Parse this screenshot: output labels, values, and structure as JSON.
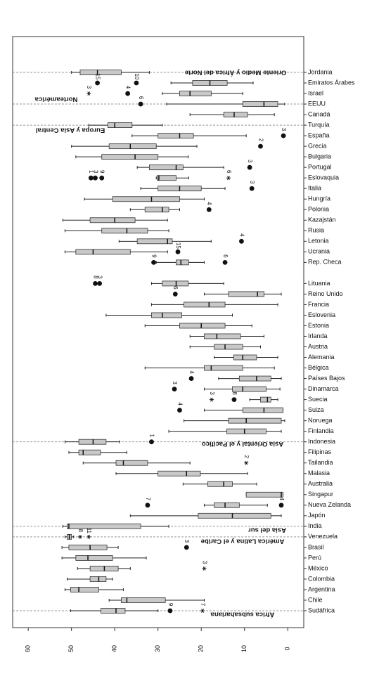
{
  "chart_data": {
    "type": "boxplot",
    "categories": [
      "Jordania",
      "Emiratos Árabes",
      "Israel",
      "EEUU",
      "Canadá",
      "Turquía",
      "España",
      "Grecia",
      "Bulgaria",
      "Portugal",
      "Eslovaquia",
      "Italia",
      "Hungría",
      "Polonia",
      "Kazajstán",
      "Rusia",
      "Letonia",
      "Ucrania",
      "Rep. Checa",
      null,
      "Lituania",
      "Reino Unido",
      "Francia",
      "Eslovenia",
      "Estonia",
      "Irlanda",
      "Austria",
      "Alemania",
      "Bélgica",
      "Países Bajos",
      "Dinamarca",
      "Suecia",
      "Suiza",
      "Noruega",
      "Finlandia",
      "Indonesia",
      "Filipinas",
      "Tailandia",
      "Malasia",
      "Australia",
      "Singapur",
      "Nueva Zelanda",
      "Japón",
      "India",
      "Venezuela",
      "Brasil",
      "Perú",
      "México",
      "Colombia",
      "Argentina",
      "Chile",
      "Sudáfrica"
    ],
    "values": [
      [
        32,
        38.5,
        44,
        48,
        50
      ],
      [
        8,
        14,
        18,
        22,
        27
      ],
      [
        10.4,
        17.7,
        22.6,
        25,
        29
      ],
      [
        0.7,
        2.3,
        5.5,
        10.4,
        28
      ],
      [
        3.1,
        9.3,
        12.4,
        14.8,
        22.6
      ],
      [
        29,
        36,
        40,
        41.6,
        46
      ],
      [
        9.6,
        21.8,
        25,
        30,
        36
      ],
      [
        21,
        30.4,
        36.4,
        41.3,
        50
      ],
      [
        23,
        30,
        35.3,
        43,
        49
      ],
      [
        14.8,
        24.2,
        25.8,
        32,
        34.8
      ],
      [
        22.9,
        25.8,
        29.8,
        30.2,
        30.4
      ],
      [
        14.5,
        20,
        25,
        30,
        34
      ],
      [
        19.3,
        25,
        31.5,
        40.5,
        47
      ],
      [
        25,
        27.5,
        29,
        33,
        36.4
      ],
      [
        27.8,
        35.3,
        40,
        45.7,
        52
      ],
      [
        27.5,
        32.4,
        37.2,
        43,
        51.5
      ],
      [
        17.7,
        26.7,
        27.8,
        34.8,
        39
      ],
      [
        27.8,
        36.4,
        45,
        49,
        51.5
      ],
      [
        19.3,
        22.9,
        24.7,
        25.8,
        30.4
      ],
      null,
      [
        14.8,
        23,
        25.8,
        29,
        31.5
      ],
      [
        1.5,
        5.5,
        7,
        13.7,
        19.3
      ],
      [
        2.3,
        14.5,
        18.2,
        24,
        31.5
      ],
      [
        12.8,
        24.5,
        29,
        31.5,
        42
      ],
      [
        8.3,
        14.5,
        20,
        25,
        33
      ],
      [
        5.5,
        10.9,
        16.4,
        19.3,
        22.6
      ],
      [
        6.3,
        10.4,
        14.5,
        17,
        22.6
      ],
      [
        2.3,
        7.2,
        10.4,
        12.5,
        17
      ],
      [
        3.1,
        10.4,
        17.7,
        19.3,
        33
      ],
      [
        1.5,
        3.9,
        7.2,
        11.2,
        16
      ],
      [
        1.8,
        5,
        10.4,
        12.8,
        19.3
      ],
      [
        2.3,
        3.9,
        4.7,
        6.3,
        8.8
      ],
      [
        1.1,
        1.1,
        5.5,
        10.4,
        19.3
      ],
      [
        0.7,
        1.5,
        9.6,
        13.7,
        24
      ],
      [
        1.5,
        5,
        10,
        14.1,
        27.5
      ],
      [
        38.9,
        42,
        45,
        48.3,
        51.5
      ],
      [
        37.2,
        43.3,
        47.3,
        48.3,
        50.6
      ],
      [
        22.6,
        32.4,
        38,
        39.7,
        47.3
      ],
      [
        9.3,
        20.2,
        23.4,
        30,
        39.7
      ],
      [
        7.2,
        12.8,
        14.8,
        18.5,
        24.2
      ],
      [
        1.1,
        1.1,
        1.5,
        9.6,
        9.6
      ],
      [
        4.7,
        11.2,
        14.5,
        17,
        19.3
      ],
      [
        1.5,
        3.9,
        12.8,
        20.7,
        36.4
      ],
      [
        27.5,
        34,
        50.6,
        51,
        52
      ],
      [
        49.5,
        50,
        50.5,
        51,
        51.5
      ],
      [
        39.2,
        41.8,
        45.7,
        50.6,
        52.2
      ],
      [
        32.7,
        40.5,
        46.2,
        49,
        52.2
      ],
      [
        36.4,
        39.2,
        42.4,
        45.7,
        48.6
      ],
      [
        40.5,
        42,
        43.7,
        45.7,
        51
      ],
      [
        38,
        43.7,
        48.3,
        50.2,
        51.5
      ],
      [
        19.3,
        28.3,
        37.2,
        38.5,
        41.3
      ],
      [
        30,
        37.6,
        39.7,
        43.2,
        50.2
      ]
    ],
    "outliers": [
      [],
      [
        {
          "value": 44,
          "label": "15",
          "marker": "dot"
        },
        {
          "value": 35,
          "label": "10",
          "marker": "dot"
        }
      ],
      [
        {
          "value": 46,
          "label": "3",
          "marker": "star"
        },
        {
          "value": 37,
          "label": "4",
          "marker": "dot"
        }
      ],
      [
        {
          "value": 34,
          "label": "6",
          "marker": "dot"
        }
      ],
      [],
      [],
      [
        {
          "value": 1,
          "label": "3",
          "marker": "dot"
        }
      ],
      [
        {
          "value": 6.3,
          "label": "2",
          "marker": "dot"
        }
      ],
      [],
      [
        {
          "value": 8.8,
          "label": "3",
          "marker": "dot"
        }
      ],
      [
        {
          "value": 45.5,
          "label": "1",
          "marker": "dot"
        },
        {
          "value": 44.5,
          "label": "3",
          "marker": "dot"
        },
        {
          "value": 43,
          "label": "9",
          "marker": "dot"
        },
        {
          "value": 13.7,
          "label": "6",
          "marker": "star"
        }
      ],
      [
        {
          "value": 8.3,
          "label": "3",
          "marker": "dot"
        }
      ],
      [],
      [
        {
          "value": 18.2,
          "label": "4",
          "marker": "dot"
        }
      ],
      [],
      [],
      [
        {
          "value": 10.7,
          "label": "4",
          "marker": "dot"
        }
      ],
      [
        {
          "value": 25.4,
          "label": "15",
          "marker": "dot"
        }
      ],
      [
        {
          "value": 31,
          "label": "9",
          "marker": "dot"
        },
        {
          "value": 14.5,
          "label": "6",
          "marker": "dot"
        }
      ],
      [],
      [
        {
          "value": 44.5,
          "label": "8",
          "marker": "dot"
        },
        {
          "value": 43.5,
          "label": "3",
          "marker": "dot"
        }
      ],
      [
        {
          "value": 26,
          "label": "6",
          "marker": "dot"
        }
      ],
      [],
      [],
      [],
      [],
      [],
      [],
      [],
      [
        {
          "value": 22.3,
          "label": "4",
          "marker": "dot"
        }
      ],
      [
        {
          "value": 26.2,
          "label": "3",
          "marker": "dot"
        }
      ],
      [
        {
          "value": 17.6,
          "label": "3",
          "marker": "star"
        },
        {
          "value": 12.4,
          "label": "8",
          "marker": "dot"
        }
      ],
      [
        {
          "value": 25,
          "label": "4",
          "marker": "dot"
        }
      ],
      [],
      [],
      [
        {
          "value": 31.5,
          "label": "1",
          "marker": "dot"
        }
      ],
      [],
      [
        {
          "value": 9.6,
          "label": "2",
          "marker": "star"
        }
      ],
      [],
      [],
      [],
      [
        {
          "value": 32.4,
          "label": "7",
          "marker": "dot"
        },
        {
          "value": 1.5,
          "label": "4",
          "marker": "dot"
        }
      ],
      [],
      [],
      [
        {
          "value": 48,
          "label": "8",
          "marker": "star"
        },
        {
          "value": 46,
          "label": "11",
          "marker": "star"
        }
      ],
      [
        {
          "value": 23.4,
          "label": "3",
          "marker": "dot"
        }
      ],
      [],
      [
        {
          "value": 19.3,
          "label": "3",
          "marker": "star"
        }
      ],
      [],
      [],
      [],
      [
        {
          "value": 27.2,
          "label": "9",
          "marker": "dot"
        },
        {
          "value": 19.7,
          "label": "7",
          "marker": "star"
        }
      ]
    ],
    "groups": [
      {
        "name": "Oriente Medio y África del Norte",
        "start": 0
      },
      {
        "name": "Norteamérica",
        "start": 3
      },
      {
        "name": "Europa y Asia Central",
        "start": 5
      },
      {
        "name": "Asia Oriental y el Pacífico",
        "start": 35
      },
      {
        "name": "Asia del sur",
        "start": 43
      },
      {
        "name": "América Latina y el Caribe",
        "start": 44
      },
      {
        "name": "África subsahariana",
        "start": 51
      }
    ],
    "xlim": [
      63.6,
      -3.7
    ],
    "xticks": [
      60,
      50,
      40,
      30,
      20,
      10,
      0
    ],
    "box_color": "#c8c8c8"
  }
}
